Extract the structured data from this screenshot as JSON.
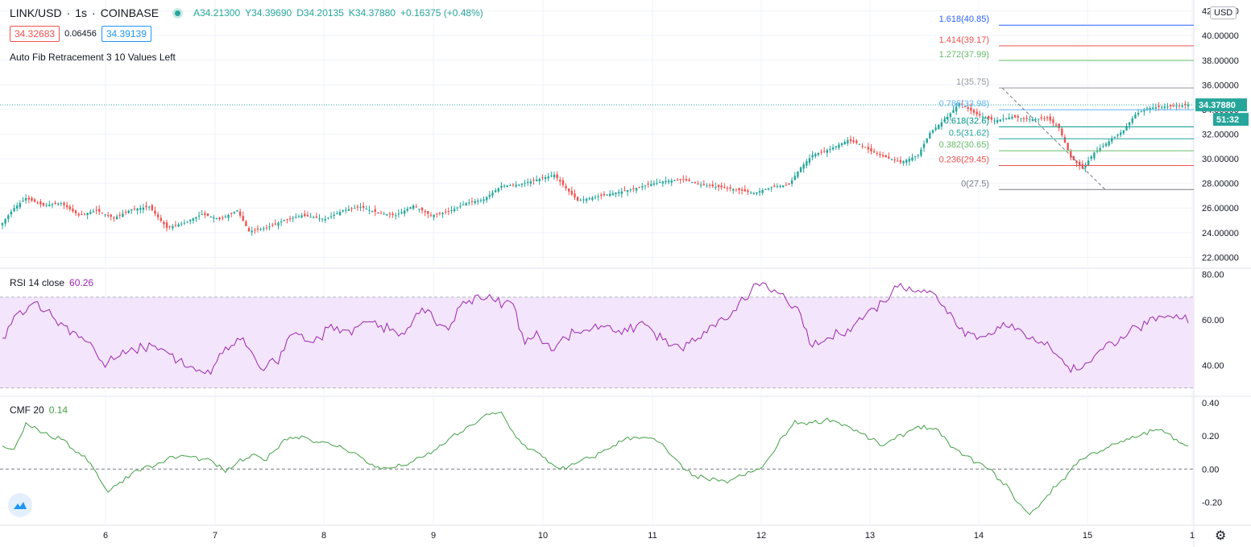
{
  "header": {
    "symbol": "LINK/USD",
    "interval": "1s",
    "exchange": "COINBASE",
    "open": "A34.21300",
    "high": "Y34.39690",
    "low": "D34.20135",
    "close": "K34.37880",
    "change": "+0.16375 (+0.48%)"
  },
  "quote": {
    "bid": "34.32683",
    "spread": "0.06456",
    "ask": "34.39139"
  },
  "fib_label": "Auto Fib Retracement 3 10 Values Left",
  "currency": "USD",
  "rsi_label": "RSI 14 close",
  "rsi_value": "60.26",
  "cmf_label": "CMF 20",
  "cmf_value": "0.14",
  "price_tag": "34.37880",
  "timer_tag": "51:32",
  "colors": {
    "up": "#26a69a",
    "down": "#ef5350",
    "rsi": "#9c27b0",
    "cmf": "#43a047",
    "rsi_band": "#f3e5fb"
  },
  "chart_data": [
    {
      "type": "candlestick",
      "pane": "price",
      "x_ticks": [
        "6",
        "7",
        "8",
        "9",
        "10",
        "11",
        "12",
        "13",
        "14",
        "15",
        "1"
      ],
      "y_ticks": [
        "22.00000",
        "24.00000",
        "26.00000",
        "28.00000",
        "30.00000",
        "32.00000",
        "34.00000",
        "36.00000",
        "38.00000",
        "40.00000",
        "42.00000"
      ],
      "ylim": [
        21.5,
        42.5
      ],
      "anchors": [
        [
          0,
          24.8
        ],
        [
          4,
          26.0
        ],
        [
          8,
          26.8
        ],
        [
          14,
          26.2
        ],
        [
          20,
          26.4
        ],
        [
          26,
          25.4
        ],
        [
          32,
          25.8
        ],
        [
          38,
          25.2
        ],
        [
          44,
          25.9
        ],
        [
          50,
          26.1
        ],
        [
          56,
          24.4
        ],
        [
          62,
          24.8
        ],
        [
          68,
          25.5
        ],
        [
          74,
          25.1
        ],
        [
          80,
          25.8
        ],
        [
          84,
          24.1
        ],
        [
          90,
          24.4
        ],
        [
          96,
          25.0
        ],
        [
          102,
          25.4
        ],
        [
          110,
          25.1
        ],
        [
          116,
          25.8
        ],
        [
          122,
          26.1
        ],
        [
          128,
          25.6
        ],
        [
          134,
          25.4
        ],
        [
          140,
          26.2
        ],
        [
          146,
          25.4
        ],
        [
          152,
          25.7
        ],
        [
          158,
          26.4
        ],
        [
          164,
          26.7
        ],
        [
          170,
          27.8
        ],
        [
          176,
          27.9
        ],
        [
          182,
          28.3
        ],
        [
          188,
          28.7
        ],
        [
          192,
          27.6
        ],
        [
          196,
          26.6
        ],
        [
          202,
          26.9
        ],
        [
          208,
          27.2
        ],
        [
          214,
          27.5
        ],
        [
          220,
          27.9
        ],
        [
          226,
          28.2
        ],
        [
          232,
          28.3
        ],
        [
          238,
          27.9
        ],
        [
          244,
          27.7
        ],
        [
          250,
          27.5
        ],
        [
          256,
          27.2
        ],
        [
          262,
          27.7
        ],
        [
          268,
          27.9
        ],
        [
          272,
          29.3
        ],
        [
          276,
          30.3
        ],
        [
          282,
          30.8
        ],
        [
          288,
          31.5
        ],
        [
          292,
          31.2
        ],
        [
          296,
          30.6
        ],
        [
          300,
          30.2
        ],
        [
          306,
          29.7
        ],
        [
          312,
          30.3
        ],
        [
          316,
          32.1
        ],
        [
          322,
          33.4
        ],
        [
          326,
          34.5
        ],
        [
          332,
          33.6
        ],
        [
          338,
          33.1
        ],
        [
          344,
          33.4
        ],
        [
          350,
          33.2
        ],
        [
          356,
          33.3
        ],
        [
          360,
          32.5
        ],
        [
          364,
          30.1
        ],
        [
          368,
          29.2
        ],
        [
          372,
          30.5
        ],
        [
          378,
          31.6
        ],
        [
          382,
          32.3
        ],
        [
          386,
          33.6
        ],
        [
          390,
          34.1
        ],
        [
          394,
          34.2
        ],
        [
          400,
          34.3
        ],
        [
          404,
          34.38
        ]
      ],
      "count": 405,
      "last": 34.3788
    },
    {
      "type": "line",
      "pane": "fib",
      "labels": [
        "1.618(40.85)",
        "1.414(39.17)",
        "1.272(37.99)",
        "1(35.75)",
        "0.786(33.98)",
        "0.618(32.6)",
        "0.5(31.62)",
        "0.382(30.65)",
        "0.236(29.45)",
        "0(27.5)"
      ],
      "values": [
        40.85,
        39.17,
        37.99,
        35.75,
        33.98,
        32.6,
        31.62,
        30.65,
        29.45,
        27.5
      ],
      "colors": [
        "#2962ff",
        "#ef5350",
        "#66bb6a",
        "#9598a1",
        "#64b5f6",
        "#009688",
        "#26a69a",
        "#66bb6a",
        "#ef5350",
        "#787b86"
      ]
    },
    {
      "type": "line",
      "pane": "rsi",
      "y_ticks": [
        "40.00",
        "60.00",
        "80.00"
      ],
      "ylim": [
        27,
        82
      ],
      "bands": [
        30,
        70
      ],
      "anchors": [
        [
          0,
          52
        ],
        [
          6,
          64
        ],
        [
          12,
          68
        ],
        [
          18,
          60
        ],
        [
          24,
          55
        ],
        [
          30,
          50
        ],
        [
          34,
          40
        ],
        [
          40,
          44
        ],
        [
          46,
          47
        ],
        [
          52,
          49
        ],
        [
          58,
          44
        ],
        [
          64,
          38
        ],
        [
          70,
          36
        ],
        [
          76,
          47
        ],
        [
          82,
          52
        ],
        [
          88,
          38
        ],
        [
          94,
          42
        ],
        [
          100,
          56
        ],
        [
          106,
          49
        ],
        [
          112,
          58
        ],
        [
          118,
          55
        ],
        [
          124,
          60
        ],
        [
          130,
          57
        ],
        [
          136,
          52
        ],
        [
          142,
          65
        ],
        [
          148,
          59
        ],
        [
          152,
          56
        ],
        [
          156,
          66
        ],
        [
          162,
          71
        ],
        [
          168,
          68
        ],
        [
          174,
          67
        ],
        [
          178,
          50
        ],
        [
          182,
          53
        ],
        [
          188,
          48
        ],
        [
          194,
          54
        ],
        [
          200,
          56
        ],
        [
          206,
          58
        ],
        [
          212,
          54
        ],
        [
          218,
          59
        ],
        [
          224,
          52
        ],
        [
          230,
          47
        ],
        [
          236,
          51
        ],
        [
          242,
          56
        ],
        [
          248,
          62
        ],
        [
          252,
          70
        ],
        [
          258,
          75
        ],
        [
          264,
          72
        ],
        [
          270,
          66
        ],
        [
          276,
          48
        ],
        [
          282,
          52
        ],
        [
          288,
          56
        ],
        [
          294,
          62
        ],
        [
          300,
          68
        ],
        [
          306,
          76
        ],
        [
          312,
          73
        ],
        [
          318,
          71
        ],
        [
          322,
          64
        ],
        [
          328,
          55
        ],
        [
          334,
          52
        ],
        [
          340,
          58
        ],
        [
          346,
          55
        ],
        [
          352,
          52
        ],
        [
          358,
          47
        ],
        [
          362,
          40
        ],
        [
          366,
          38
        ],
        [
          372,
          44
        ],
        [
          378,
          50
        ],
        [
          384,
          55
        ],
        [
          390,
          58
        ],
        [
          396,
          61
        ],
        [
          404,
          60.26
        ]
      ],
      "count": 405
    },
    {
      "type": "line",
      "pane": "cmf",
      "y_ticks": [
        "-0.20",
        "0.00",
        "0.20",
        "0.40"
      ],
      "ylim": [
        -0.32,
        0.42
      ],
      "anchors": [
        [
          0,
          0.14
        ],
        [
          4,
          0.12
        ],
        [
          8,
          0.28
        ],
        [
          12,
          0.24
        ],
        [
          16,
          0.2
        ],
        [
          20,
          0.18
        ],
        [
          24,
          0.12
        ],
        [
          28,
          0.08
        ],
        [
          32,
          -0.02
        ],
        [
          36,
          -0.14
        ],
        [
          40,
          -0.08
        ],
        [
          46,
          0.0
        ],
        [
          52,
          0.02
        ],
        [
          56,
          0.06
        ],
        [
          62,
          0.08
        ],
        [
          68,
          0.06
        ],
        [
          72,
          0.04
        ],
        [
          76,
          -0.02
        ],
        [
          80,
          0.04
        ],
        [
          86,
          0.08
        ],
        [
          90,
          0.06
        ],
        [
          96,
          0.18
        ],
        [
          102,
          0.2
        ],
        [
          108,
          0.16
        ],
        [
          114,
          0.14
        ],
        [
          120,
          0.1
        ],
        [
          124,
          0.04
        ],
        [
          130,
          0.0
        ],
        [
          136,
          0.02
        ],
        [
          142,
          0.06
        ],
        [
          148,
          0.12
        ],
        [
          152,
          0.18
        ],
        [
          158,
          0.24
        ],
        [
          164,
          0.32
        ],
        [
          170,
          0.34
        ],
        [
          174,
          0.22
        ],
        [
          178,
          0.14
        ],
        [
          182,
          0.1
        ],
        [
          188,
          0.02
        ],
        [
          192,
          0.0
        ],
        [
          196,
          0.04
        ],
        [
          202,
          0.08
        ],
        [
          208,
          0.14
        ],
        [
          212,
          0.18
        ],
        [
          218,
          0.2
        ],
        [
          224,
          0.16
        ],
        [
          228,
          0.08
        ],
        [
          232,
          0.0
        ],
        [
          236,
          -0.04
        ],
        [
          240,
          -0.06
        ],
        [
          246,
          -0.08
        ],
        [
          252,
          -0.04
        ],
        [
          258,
          0.0
        ],
        [
          262,
          0.08
        ],
        [
          266,
          0.2
        ],
        [
          270,
          0.28
        ],
        [
          276,
          0.28
        ],
        [
          282,
          0.3
        ],
        [
          288,
          0.26
        ],
        [
          294,
          0.2
        ],
        [
          300,
          0.14
        ],
        [
          306,
          0.2
        ],
        [
          312,
          0.26
        ],
        [
          318,
          0.24
        ],
        [
          322,
          0.16
        ],
        [
          326,
          0.1
        ],
        [
          330,
          0.06
        ],
        [
          336,
          0.0
        ],
        [
          342,
          -0.1
        ],
        [
          346,
          -0.2
        ],
        [
          350,
          -0.28
        ],
        [
          354,
          -0.2
        ],
        [
          358,
          -0.12
        ],
        [
          362,
          -0.05
        ],
        [
          366,
          0.04
        ],
        [
          372,
          0.1
        ],
        [
          378,
          0.14
        ],
        [
          384,
          0.18
        ],
        [
          390,
          0.22
        ],
        [
          394,
          0.24
        ],
        [
          398,
          0.2
        ],
        [
          404,
          0.14
        ]
      ],
      "count": 405
    }
  ]
}
